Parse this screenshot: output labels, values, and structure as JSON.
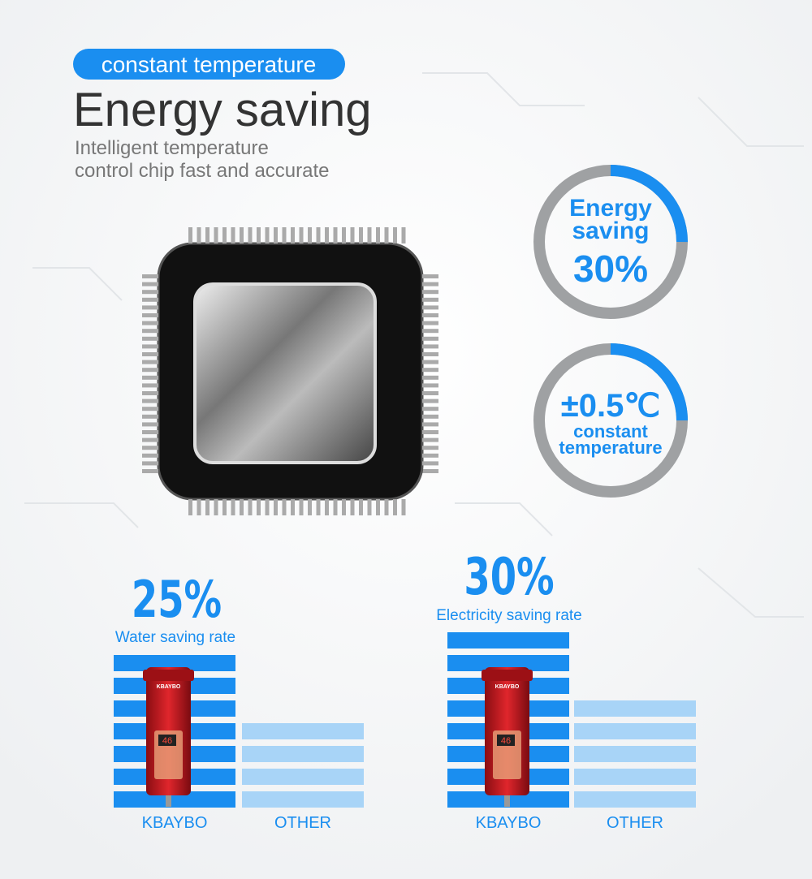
{
  "header": {
    "tag": "constant temperature",
    "title": "Energy saving",
    "subtitle": [
      "Intelligent temperature",
      "control chip fast and accurate"
    ]
  },
  "badges": [
    {
      "lines": [
        "Energy",
        "saving",
        "30%"
      ]
    },
    {
      "lines": [
        "±0.5℃",
        "constant",
        "temperature"
      ]
    }
  ],
  "comparisons": [
    {
      "rate": "25%",
      "label": "Water saving rate",
      "heater_brand": "KBAYBO",
      "display": "46",
      "bars": [
        "KBAYBO",
        "OTHER"
      ]
    },
    {
      "rate": "30%",
      "label": "Electricity saving rate",
      "heater_brand": "KBAYBO",
      "display": "46",
      "bars": [
        "KBAYBO",
        "OTHER"
      ]
    }
  ]
}
